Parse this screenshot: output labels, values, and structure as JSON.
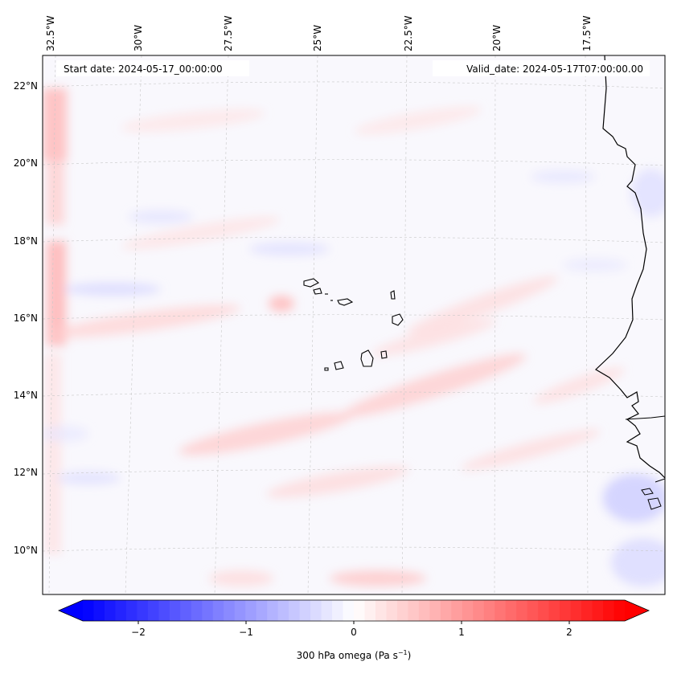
{
  "map": {
    "start_date_text": "Start date: 2024-05-17_00:00:00",
    "valid_date_text": "Valid_date: 2024-05-17T07:00:00.00",
    "lon_labels": [
      "32.5°W",
      "30°W",
      "27.5°W",
      "25°W",
      "22.5°W",
      "20°W",
      "17.5°W"
    ],
    "lat_labels": [
      "22°N",
      "20°N",
      "18°N",
      "16°N",
      "14°N",
      "12°N",
      "10°N"
    ],
    "extent": {
      "lon_min": -33.0,
      "lon_max": -16.0,
      "lat_min": 8.9,
      "lat_max": 22.7
    }
  },
  "colorbar": {
    "label_main": "300 hPa omega (Pa s",
    "label_exp": "−1",
    "label_close": ")",
    "ticks": [
      "−2",
      "−1",
      "0",
      "1",
      "2"
    ],
    "range": [
      -2.6,
      2.6
    ],
    "colors": {
      "low": "#0000ff",
      "mid": "#ffffff",
      "high": "#ff0000"
    }
  }
}
